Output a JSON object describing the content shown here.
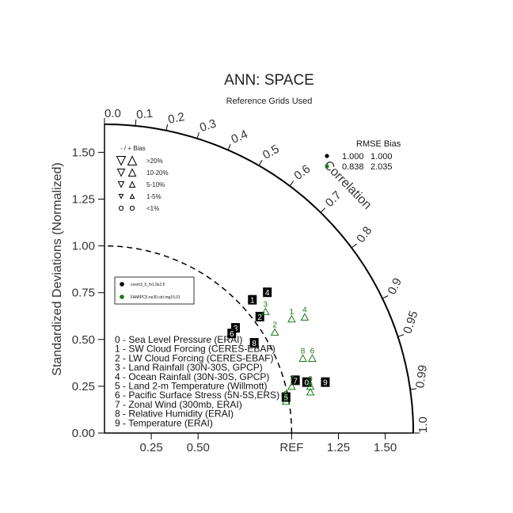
{
  "chart_data": {
    "type": "scatter",
    "subtype": "taylor-diagram",
    "title": "ANN: SPACE",
    "subtitle": "Reference Grids Used",
    "ylabel": "Standardized Deviations (Normalized)",
    "corr_axis_label": "Correlation",
    "xlim": [
      0,
      1.65
    ],
    "ylim": [
      0,
      1.65
    ],
    "x_ticks": [
      "0.25",
      "0.50",
      "REF",
      "1.25",
      "1.50"
    ],
    "x_tick_values": [
      0.25,
      0.5,
      1.0,
      1.25,
      1.5
    ],
    "y_ticks": [
      "0.00",
      "0.25",
      "0.50",
      "0.75",
      "1.00",
      "1.25",
      "1.50"
    ],
    "y_tick_values": [
      0,
      0.25,
      0.5,
      0.75,
      1.0,
      1.25,
      1.5
    ],
    "corr_ticks": [
      "0.0",
      "0.1",
      "0.2",
      "0.3",
      "0.4",
      "0.5",
      "0.6",
      "0.7",
      "0.8",
      "0.9",
      "0.95",
      "0.99",
      "1.0"
    ],
    "corr_tick_values": [
      0,
      0.1,
      0.2,
      0.3,
      0.4,
      0.5,
      0.6,
      0.7,
      0.8,
      0.9,
      0.95,
      0.99,
      1.0
    ],
    "reference_arc": 1.0,
    "bias_legend": {
      "header": "-  /  +       Bias",
      "rows": [
        ">20%",
        "10-20%",
        "5-10%",
        "1-5%",
        "<1%"
      ]
    },
    "stats_table": {
      "header": "RMSE  Bias",
      "rows": [
        {
          "rmse": "1.000",
          "bias": "1.000",
          "color": "#000000"
        },
        {
          "rmse": "0.838",
          "bias": "2.035",
          "color": "#1a7a1a"
        }
      ]
    },
    "variables": [
      "0 - Sea Level Pressure (ERAI)",
      "1 - SW Cloud Forcing (CERES-EBAF)",
      "2 - LW Cloud Forcing (CERES-EBAF)",
      "3 - Land Rainfall (30N-30S, GPCP)",
      "4 - Ocean Rainfall (30N-30S, GPCP)",
      "5 - Land 2-m Temperature (Willmott)",
      "6 - Pacific Surface Stress (5N-5S,ERS)",
      "7 - Zonal Wind (300mb, ERAI)",
      "8 - Relative Humidity (ERAI)",
      "9 - Temperature (ERAI)"
    ],
    "series": [
      {
        "name": "cesm3_5_fv1.9x2.5",
        "color": "#000000",
        "points": [
          {
            "id": "0",
            "x": 1.08,
            "y": 0.27
          },
          {
            "id": "1",
            "x": 0.79,
            "y": 0.71
          },
          {
            "id": "2",
            "x": 0.83,
            "y": 0.62
          },
          {
            "id": "3",
            "x": 0.7,
            "y": 0.56
          },
          {
            "id": "4",
            "x": 0.87,
            "y": 0.75
          },
          {
            "id": "5",
            "x": 0.97,
            "y": 0.19
          },
          {
            "id": "6",
            "x": 0.68,
            "y": 0.53
          },
          {
            "id": "7",
            "x": 1.02,
            "y": 0.28
          },
          {
            "id": "8",
            "x": 0.8,
            "y": 0.48
          },
          {
            "id": "9",
            "x": 1.18,
            "y": 0.27
          }
        ]
      },
      {
        "name": "FAMIPC5.ne30.ctrl.mg15.01",
        "color": "#1a7a1a",
        "points": [
          {
            "id": "0",
            "x": 1.1,
            "y": 0.22
          },
          {
            "id": "1",
            "x": 1.0,
            "y": 0.61
          },
          {
            "id": "2",
            "x": 0.91,
            "y": 0.54
          },
          {
            "id": "3",
            "x": 0.86,
            "y": 0.65
          },
          {
            "id": "4",
            "x": 1.07,
            "y": 0.62
          },
          {
            "id": "5",
            "x": 0.97,
            "y": 0.17
          },
          {
            "id": "6",
            "x": 1.11,
            "y": 0.4
          },
          {
            "id": "7",
            "x": 1.0,
            "y": 0.25
          },
          {
            "id": "8",
            "x": 1.06,
            "y": 0.4
          },
          {
            "id": "9",
            "x": 1.1,
            "y": 0.25
          }
        ]
      }
    ]
  }
}
